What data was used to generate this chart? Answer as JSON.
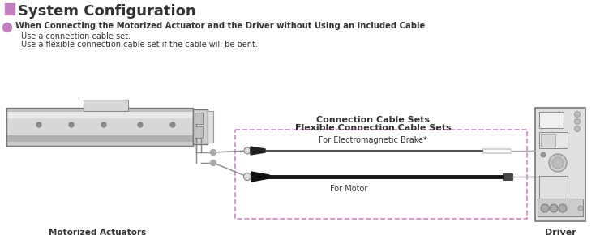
{
  "title": "System Configuration",
  "title_color": "#333333",
  "title_sq_color": "#c080c0",
  "bullet_color": "#c080c0",
  "heading": "When Connecting the Motorized Actuator and the Driver without Using an Included Cable",
  "line1": "Use a connection cable set.",
  "line2": "Use a flexible connection cable set if the cable will be bent.",
  "cable_box_label1": "Connection Cable Sets",
  "cable_box_label2": "Flexible Connection Cable Sets",
  "brake_label": "For Electromagnetic Brake*",
  "motor_label": "For Motor",
  "actuator_label": "Motorized Actuators",
  "driver_label": "Driver",
  "bg_color": "#ffffff",
  "box_border_color": "#cc88cc",
  "dashed_style": "--"
}
